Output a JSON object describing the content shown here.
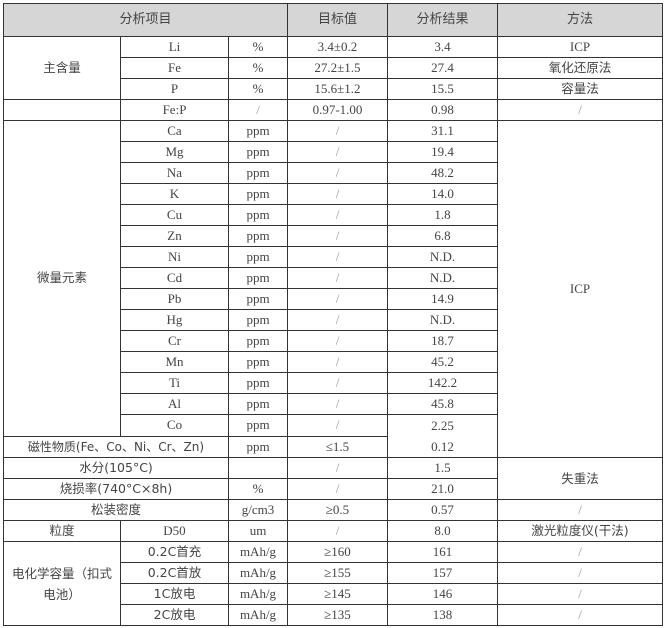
{
  "header": {
    "item": "分析项目",
    "target": "目标值",
    "result": "分析结果",
    "method": "方法"
  },
  "main_content": {
    "group": "主含量",
    "rows": [
      {
        "element": "Li",
        "unit": "%",
        "target": "3.4±0.2",
        "result": "3.4",
        "method": "ICP"
      },
      {
        "element": "Fe",
        "unit": "%",
        "target": "27.2±1.5",
        "result": "27.4",
        "method": "氧化还原法"
      },
      {
        "element": "P",
        "unit": "%",
        "target": "15.6±1.2",
        "result": "15.5",
        "method": "容量法"
      }
    ]
  },
  "ratio": {
    "element": "Fe:P",
    "unit": "/",
    "target": "0.97-1.00",
    "result": "0.98",
    "method": "/"
  },
  "trace": {
    "group": "微量元素",
    "method": "ICP",
    "rows": [
      {
        "element": "Ca",
        "unit": "ppm",
        "target": "/",
        "result": "31.1"
      },
      {
        "element": "Mg",
        "unit": "ppm",
        "target": "/",
        "result": "19.4"
      },
      {
        "element": "Na",
        "unit": "ppm",
        "target": "/",
        "result": "48.2"
      },
      {
        "element": "K",
        "unit": "ppm",
        "target": "/",
        "result": "14.0"
      },
      {
        "element": "Cu",
        "unit": "ppm",
        "target": "/",
        "result": "1.8"
      },
      {
        "element": "Zn",
        "unit": "ppm",
        "target": "/",
        "result": "6.8"
      },
      {
        "element": "Ni",
        "unit": "ppm",
        "target": "/",
        "result": "N.D."
      },
      {
        "element": "Cd",
        "unit": "ppm",
        "target": "/",
        "result": "N.D."
      },
      {
        "element": "Pb",
        "unit": "ppm",
        "target": "/",
        "result": "14.9"
      },
      {
        "element": "Hg",
        "unit": "ppm",
        "target": "/",
        "result": "N.D."
      },
      {
        "element": "Cr",
        "unit": "ppm",
        "target": "/",
        "result": "18.7"
      },
      {
        "element": "Mn",
        "unit": "ppm",
        "target": "/",
        "result": "45.2"
      },
      {
        "element": "Ti",
        "unit": "ppm",
        "target": "/",
        "result": "142.2"
      },
      {
        "element": "Al",
        "unit": "ppm",
        "target": "/",
        "result": "45.8"
      }
    ],
    "last": {
      "element": "Co",
      "unit": "ppm",
      "target": "/",
      "result": "2.25"
    }
  },
  "magnetic": {
    "label": "磁性物质(Fe、Co、Ni、Cr、Zn)",
    "unit": "ppm",
    "target": "≤1.5",
    "result": "0.12"
  },
  "moisture": {
    "label": "水分(105°C)",
    "unit": "",
    "target": "/",
    "result": "1.5"
  },
  "ignition": {
    "label": "烧损率(740°C×8h)",
    "unit": "%",
    "target": "/",
    "result": "21.0"
  },
  "weight_loss_method": "失重法",
  "density": {
    "label": "松装密度",
    "unit": "g/cm3",
    "target": "≥0.5",
    "result": "0.57",
    "method": "/"
  },
  "particle": {
    "label": "粒度",
    "param": "D50",
    "unit": "um",
    "target": "/",
    "result": "8.0",
    "method": "激光粒度仪(干法)"
  },
  "electrochem": {
    "group": "电化学容量（扣式电池）",
    "rows": [
      {
        "item": "0.2C首充",
        "unit": "mAh/g",
        "target": "≥160",
        "result": "161",
        "method": "/"
      },
      {
        "item": "0.2C首放",
        "unit": "mAh/g",
        "target": "≥155",
        "result": "157",
        "method": "/"
      },
      {
        "item": "1C放电",
        "unit": "mAh/g",
        "target": "≥145",
        "result": "146",
        "method": "/"
      },
      {
        "item": "2C放电",
        "unit": "mAh/g",
        "target": "≥135",
        "result": "138",
        "method": "/"
      }
    ]
  }
}
